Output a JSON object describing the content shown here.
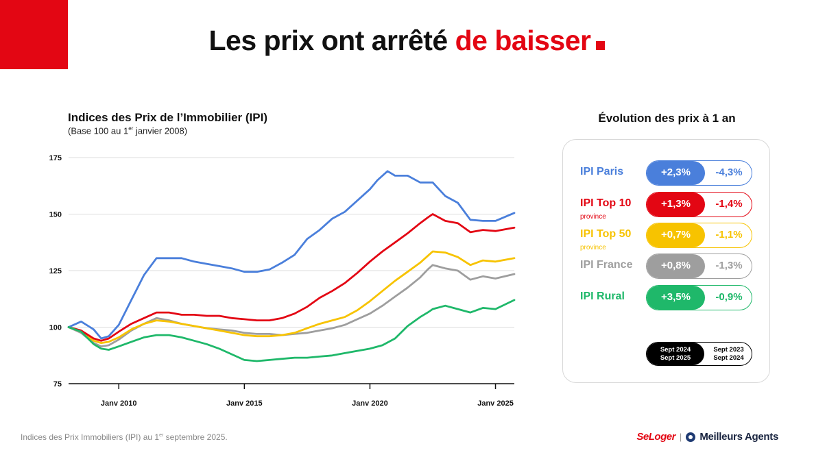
{
  "header": {
    "title_part1": "Les prix ont arrêté",
    "title_part2": "de baisser"
  },
  "chart_header": {
    "title": "Indices des Prix de l’Immobilier (IPI)",
    "subtitle_pre": "(Base 100 au 1",
    "subtitle_sup": "er",
    "subtitle_post": " janvier 2008)"
  },
  "chart_data": {
    "type": "line",
    "ylim": [
      75,
      175
    ],
    "xlim": [
      2008,
      2025.75
    ],
    "yticks": [
      75,
      100,
      125,
      150,
      175
    ],
    "xticks": [
      {
        "label": "Janv 2010",
        "value": 2010
      },
      {
        "label": "Janv 2015",
        "value": 2015
      },
      {
        "label": "Janv 2020",
        "value": 2020
      },
      {
        "label": "Janv 2025",
        "value": 2025
      }
    ],
    "grid": true,
    "series": [
      {
        "name": "IPI France",
        "color": "#9e9e9e",
        "x": [
          2008,
          2008.5,
          2009,
          2009.3,
          2009.6,
          2010,
          2010.5,
          2011,
          2011.5,
          2012,
          2012.5,
          2013,
          2013.5,
          2014,
          2014.5,
          2015,
          2015.5,
          2016,
          2016.5,
          2017,
          2017.5,
          2018,
          2018.5,
          2019,
          2019.5,
          2020,
          2020.5,
          2021,
          2021.5,
          2022,
          2022.3,
          2022.5,
          2023,
          2023.5,
          2024,
          2024.5,
          2025,
          2025.75
        ],
        "values": [
          100,
          97.5,
          93,
          91.5,
          92,
          94.5,
          98.5,
          101.5,
          104,
          103,
          101.5,
          100.5,
          99.5,
          99,
          98.5,
          97.5,
          97,
          97,
          96.5,
          97,
          97.5,
          98.5,
          99.5,
          101,
          103.5,
          106,
          109.5,
          113.5,
          117.5,
          122,
          125.5,
          127.5,
          126,
          125,
          121,
          122.5,
          121.5,
          123.5
        ]
      },
      {
        "name": "IPI Top 50 province",
        "color": "#f7c300",
        "x": [
          2008,
          2008.5,
          2009,
          2009.3,
          2009.6,
          2010,
          2010.5,
          2011,
          2011.5,
          2012,
          2012.5,
          2013,
          2013.5,
          2014,
          2014.5,
          2015,
          2015.5,
          2016,
          2016.5,
          2017,
          2017.5,
          2018,
          2018.5,
          2019,
          2019.5,
          2020,
          2020.5,
          2021,
          2021.5,
          2022,
          2022.3,
          2022.5,
          2023,
          2023.5,
          2024,
          2024.5,
          2025,
          2025.75
        ],
        "values": [
          100,
          98,
          94,
          93,
          93.5,
          95.5,
          99,
          101.5,
          103,
          102.5,
          101.5,
          100.5,
          99.5,
          98.5,
          97.5,
          96.5,
          96,
          96,
          96.5,
          97.5,
          99.5,
          101.5,
          103,
          104.5,
          107.5,
          111.5,
          116,
          120.5,
          124.5,
          128.5,
          131.5,
          133.5,
          133,
          131,
          127.5,
          129.5,
          129,
          130.5
        ]
      },
      {
        "name": "IPI Top 10 province",
        "color": "#e30613",
        "x": [
          2008,
          2008.5,
          2009,
          2009.3,
          2009.6,
          2010,
          2010.5,
          2011,
          2011.5,
          2012,
          2012.5,
          2013,
          2013.5,
          2014,
          2014.5,
          2015,
          2015.5,
          2016,
          2016.5,
          2017,
          2017.5,
          2018,
          2018.5,
          2019,
          2019.5,
          2020,
          2020.5,
          2021,
          2021.5,
          2022,
          2022.3,
          2022.5,
          2023,
          2023.5,
          2024,
          2024.5,
          2025,
          2025.75
        ],
        "values": [
          100,
          98.5,
          95,
          94,
          95,
          98,
          101.5,
          104,
          106.5,
          106.5,
          105.5,
          105.5,
          105,
          105,
          104,
          103.5,
          103,
          103,
          104,
          106,
          109,
          113,
          116,
          119.5,
          124,
          129,
          133.5,
          137.5,
          141.5,
          146,
          148.5,
          150,
          147,
          146,
          142,
          143,
          142.5,
          144
        ]
      },
      {
        "name": "IPI Paris",
        "color": "#4a7fdb",
        "x": [
          2008,
          2008.5,
          2009,
          2009.3,
          2009.6,
          2010,
          2010.5,
          2011,
          2011.5,
          2012,
          2012.5,
          2013,
          2013.5,
          2014,
          2014.5,
          2015,
          2015.5,
          2016,
          2016.5,
          2017,
          2017.5,
          2018,
          2018.5,
          2019,
          2019.5,
          2020,
          2020.3,
          2020.7,
          2021,
          2021.5,
          2022,
          2022.5,
          2023,
          2023.5,
          2024,
          2024.5,
          2025,
          2025.75
        ],
        "values": [
          100,
          102.5,
          99,
          95,
          96,
          101,
          112,
          123,
          130.5,
          130.5,
          130.5,
          129,
          128,
          127,
          126,
          124.5,
          124.5,
          125.5,
          128.5,
          132,
          139,
          143,
          148,
          151,
          156,
          161,
          165,
          169,
          167,
          167,
          164,
          164,
          158,
          155,
          147.5,
          147,
          147,
          150.5
        ]
      },
      {
        "name": "IPI Rural",
        "color": "#1fb86a",
        "x": [
          2008,
          2008.5,
          2009,
          2009.3,
          2009.6,
          2010,
          2010.5,
          2011,
          2011.5,
          2012,
          2012.5,
          2013,
          2013.5,
          2014,
          2014.5,
          2015,
          2015.5,
          2016,
          2016.5,
          2017,
          2017.5,
          2018,
          2018.5,
          2019,
          2019.5,
          2020,
          2020.5,
          2021,
          2021.5,
          2022,
          2022.3,
          2022.5,
          2023,
          2023.5,
          2024,
          2024.5,
          2025,
          2025.75
        ],
        "values": [
          100,
          98,
          92.5,
          90.5,
          90,
          91.5,
          93.5,
          95.5,
          96.5,
          96.5,
          95.5,
          94,
          92.5,
          90.5,
          88,
          85.5,
          85,
          85.5,
          86,
          86.5,
          86.5,
          87,
          87.5,
          88.5,
          89.5,
          90.5,
          92,
          95,
          100.5,
          104.5,
          106.5,
          108,
          109.5,
          108,
          106.5,
          108.5,
          108,
          112
        ]
      }
    ]
  },
  "evolution": {
    "title": "Évolution des prix à 1 an",
    "rows": [
      {
        "label": "IPI Paris",
        "sub": "",
        "color": "#4a7fdb",
        "current": "+2,3%",
        "previous": "-4,3%"
      },
      {
        "label": "IPI Top 10",
        "sub": "province",
        "color": "#e30613",
        "current": "+1,3%",
        "previous": "-1,4%"
      },
      {
        "label": "IPI Top 50",
        "sub": "province",
        "color": "#f7c300",
        "current": "+0,7%",
        "previous": "-1,1%"
      },
      {
        "label": "IPI France",
        "sub": "",
        "color": "#9e9e9e",
        "current": "+0,8%",
        "previous": "-1,3%"
      },
      {
        "label": "IPI Rural",
        "sub": "",
        "color": "#1fb86a",
        "current": "+3,5%",
        "previous": "-0,9%"
      }
    ],
    "legend": {
      "current_line1": "Sept 2024",
      "current_line2": "Sept 2025",
      "previous_line1": "Sept 2023",
      "previous_line2": "Sept 2024"
    }
  },
  "footer": {
    "note_pre": "Indices des Prix Immobiliers (IPI) au 1",
    "note_sup": "er",
    "note_post": " septembre 2025.",
    "brand1": "SeLoger",
    "brand_sep": "|",
    "brand2": "Meilleurs Agents"
  }
}
